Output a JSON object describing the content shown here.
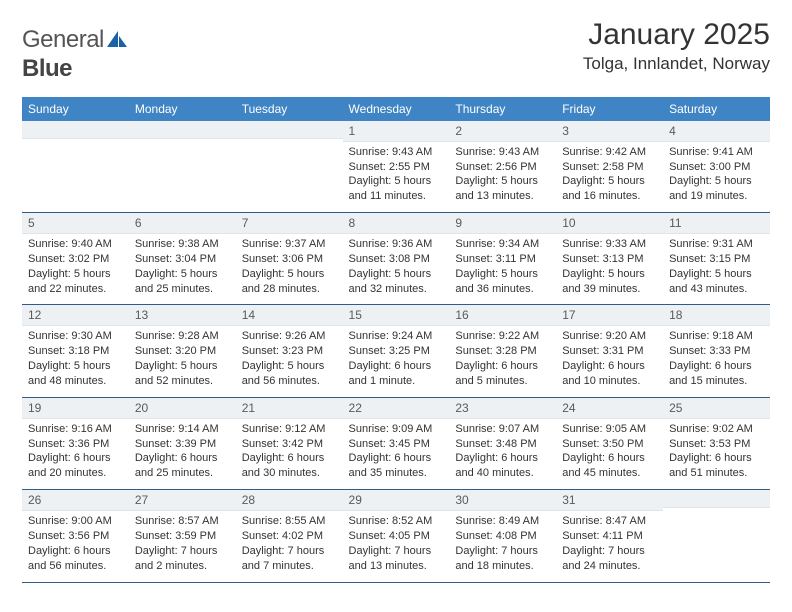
{
  "logo": {
    "word1": "General",
    "word2": "Blue"
  },
  "title": "January 2025",
  "location": "Tolga, Innlandet, Norway",
  "colors": {
    "header_bg": "#3f84c4",
    "header_text": "#ffffff",
    "daynum_bg": "#eef1f3",
    "rule": "#2f5d87",
    "logo_accent": "#1b61a6"
  },
  "day_names": [
    "Sunday",
    "Monday",
    "Tuesday",
    "Wednesday",
    "Thursday",
    "Friday",
    "Saturday"
  ],
  "weeks": [
    [
      {
        "num": "",
        "lines": []
      },
      {
        "num": "",
        "lines": []
      },
      {
        "num": "",
        "lines": []
      },
      {
        "num": "1",
        "lines": [
          "Sunrise: 9:43 AM",
          "Sunset: 2:55 PM",
          "Daylight: 5 hours and 11 minutes."
        ]
      },
      {
        "num": "2",
        "lines": [
          "Sunrise: 9:43 AM",
          "Sunset: 2:56 PM",
          "Daylight: 5 hours and 13 minutes."
        ]
      },
      {
        "num": "3",
        "lines": [
          "Sunrise: 9:42 AM",
          "Sunset: 2:58 PM",
          "Daylight: 5 hours and 16 minutes."
        ]
      },
      {
        "num": "4",
        "lines": [
          "Sunrise: 9:41 AM",
          "Sunset: 3:00 PM",
          "Daylight: 5 hours and 19 minutes."
        ]
      }
    ],
    [
      {
        "num": "5",
        "lines": [
          "Sunrise: 9:40 AM",
          "Sunset: 3:02 PM",
          "Daylight: 5 hours and 22 minutes."
        ]
      },
      {
        "num": "6",
        "lines": [
          "Sunrise: 9:38 AM",
          "Sunset: 3:04 PM",
          "Daylight: 5 hours and 25 minutes."
        ]
      },
      {
        "num": "7",
        "lines": [
          "Sunrise: 9:37 AM",
          "Sunset: 3:06 PM",
          "Daylight: 5 hours and 28 minutes."
        ]
      },
      {
        "num": "8",
        "lines": [
          "Sunrise: 9:36 AM",
          "Sunset: 3:08 PM",
          "Daylight: 5 hours and 32 minutes."
        ]
      },
      {
        "num": "9",
        "lines": [
          "Sunrise: 9:34 AM",
          "Sunset: 3:11 PM",
          "Daylight: 5 hours and 36 minutes."
        ]
      },
      {
        "num": "10",
        "lines": [
          "Sunrise: 9:33 AM",
          "Sunset: 3:13 PM",
          "Daylight: 5 hours and 39 minutes."
        ]
      },
      {
        "num": "11",
        "lines": [
          "Sunrise: 9:31 AM",
          "Sunset: 3:15 PM",
          "Daylight: 5 hours and 43 minutes."
        ]
      }
    ],
    [
      {
        "num": "12",
        "lines": [
          "Sunrise: 9:30 AM",
          "Sunset: 3:18 PM",
          "Daylight: 5 hours and 48 minutes."
        ]
      },
      {
        "num": "13",
        "lines": [
          "Sunrise: 9:28 AM",
          "Sunset: 3:20 PM",
          "Daylight: 5 hours and 52 minutes."
        ]
      },
      {
        "num": "14",
        "lines": [
          "Sunrise: 9:26 AM",
          "Sunset: 3:23 PM",
          "Daylight: 5 hours and 56 minutes."
        ]
      },
      {
        "num": "15",
        "lines": [
          "Sunrise: 9:24 AM",
          "Sunset: 3:25 PM",
          "Daylight: 6 hours and 1 minute."
        ]
      },
      {
        "num": "16",
        "lines": [
          "Sunrise: 9:22 AM",
          "Sunset: 3:28 PM",
          "Daylight: 6 hours and 5 minutes."
        ]
      },
      {
        "num": "17",
        "lines": [
          "Sunrise: 9:20 AM",
          "Sunset: 3:31 PM",
          "Daylight: 6 hours and 10 minutes."
        ]
      },
      {
        "num": "18",
        "lines": [
          "Sunrise: 9:18 AM",
          "Sunset: 3:33 PM",
          "Daylight: 6 hours and 15 minutes."
        ]
      }
    ],
    [
      {
        "num": "19",
        "lines": [
          "Sunrise: 9:16 AM",
          "Sunset: 3:36 PM",
          "Daylight: 6 hours and 20 minutes."
        ]
      },
      {
        "num": "20",
        "lines": [
          "Sunrise: 9:14 AM",
          "Sunset: 3:39 PM",
          "Daylight: 6 hours and 25 minutes."
        ]
      },
      {
        "num": "21",
        "lines": [
          "Sunrise: 9:12 AM",
          "Sunset: 3:42 PM",
          "Daylight: 6 hours and 30 minutes."
        ]
      },
      {
        "num": "22",
        "lines": [
          "Sunrise: 9:09 AM",
          "Sunset: 3:45 PM",
          "Daylight: 6 hours and 35 minutes."
        ]
      },
      {
        "num": "23",
        "lines": [
          "Sunrise: 9:07 AM",
          "Sunset: 3:48 PM",
          "Daylight: 6 hours and 40 minutes."
        ]
      },
      {
        "num": "24",
        "lines": [
          "Sunrise: 9:05 AM",
          "Sunset: 3:50 PM",
          "Daylight: 6 hours and 45 minutes."
        ]
      },
      {
        "num": "25",
        "lines": [
          "Sunrise: 9:02 AM",
          "Sunset: 3:53 PM",
          "Daylight: 6 hours and 51 minutes."
        ]
      }
    ],
    [
      {
        "num": "26",
        "lines": [
          "Sunrise: 9:00 AM",
          "Sunset: 3:56 PM",
          "Daylight: 6 hours and 56 minutes."
        ]
      },
      {
        "num": "27",
        "lines": [
          "Sunrise: 8:57 AM",
          "Sunset: 3:59 PM",
          "Daylight: 7 hours and 2 minutes."
        ]
      },
      {
        "num": "28",
        "lines": [
          "Sunrise: 8:55 AM",
          "Sunset: 4:02 PM",
          "Daylight: 7 hours and 7 minutes."
        ]
      },
      {
        "num": "29",
        "lines": [
          "Sunrise: 8:52 AM",
          "Sunset: 4:05 PM",
          "Daylight: 7 hours and 13 minutes."
        ]
      },
      {
        "num": "30",
        "lines": [
          "Sunrise: 8:49 AM",
          "Sunset: 4:08 PM",
          "Daylight: 7 hours and 18 minutes."
        ]
      },
      {
        "num": "31",
        "lines": [
          "Sunrise: 8:47 AM",
          "Sunset: 4:11 PM",
          "Daylight: 7 hours and 24 minutes."
        ]
      },
      {
        "num": "",
        "lines": []
      }
    ]
  ]
}
